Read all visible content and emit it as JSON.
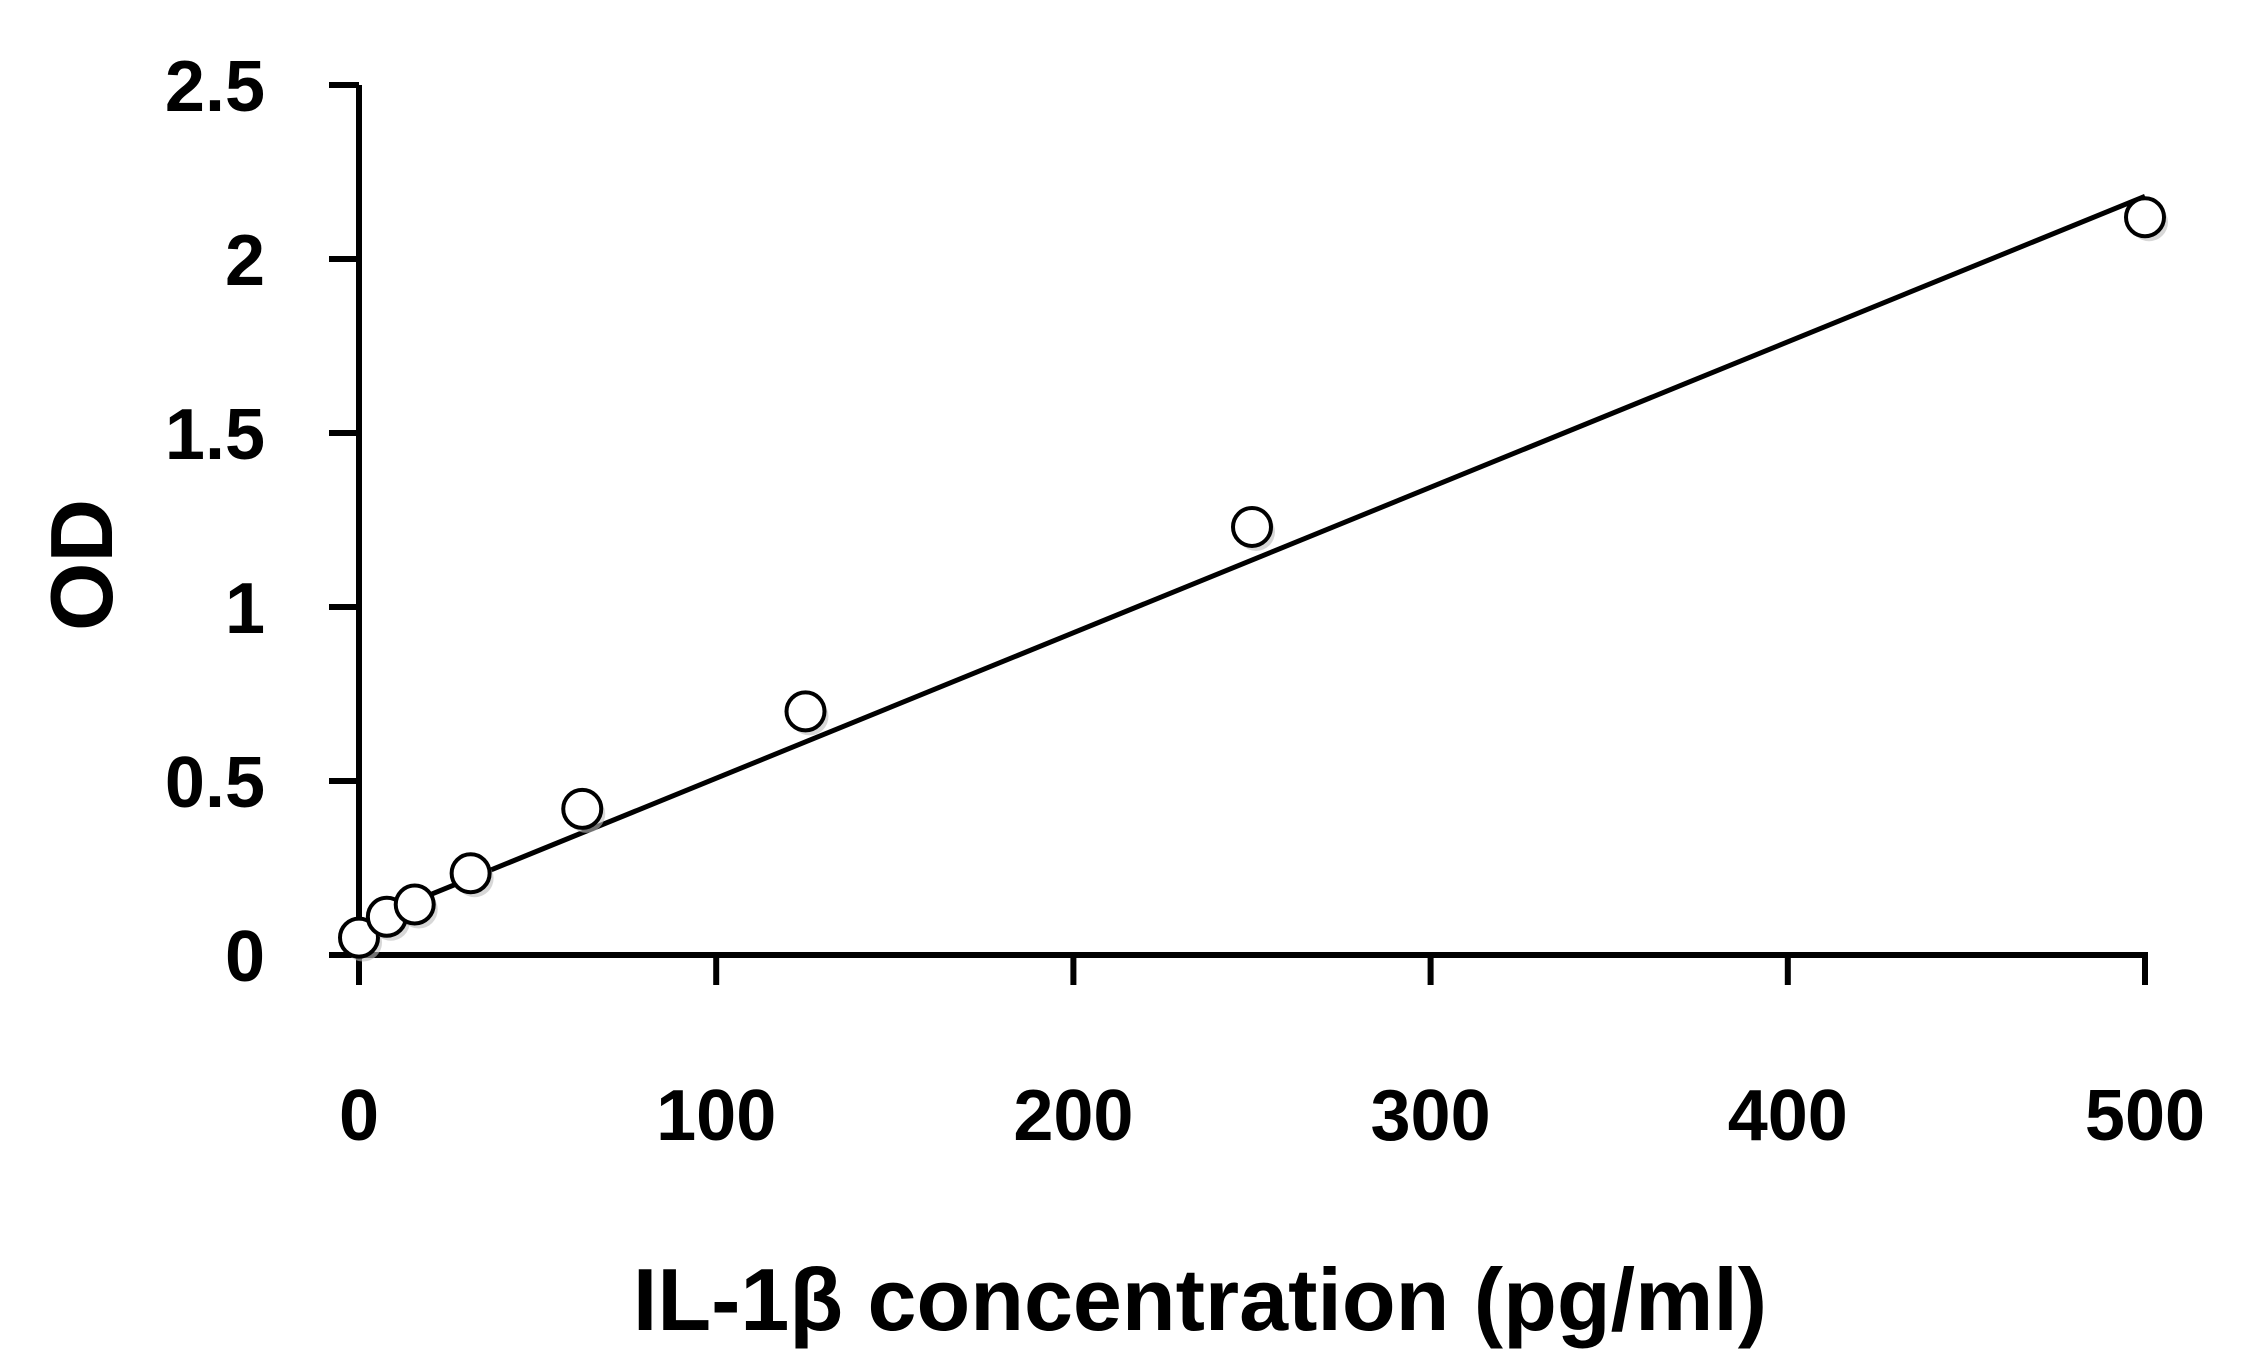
{
  "chart_data": {
    "type": "scatter",
    "title": "",
    "xlabel": "IL-1β  concentration (pg/ml)",
    "ylabel": "OD",
    "xlim": [
      0,
      500
    ],
    "ylim": [
      0,
      2.5
    ],
    "x_ticks": [
      "0",
      "100",
      "200",
      "300",
      "400",
      "500"
    ],
    "y_ticks": [
      "0",
      "0.5",
      "1",
      "1.5",
      "2",
      "2.5"
    ],
    "grid": false,
    "legend": "none",
    "series": [
      {
        "marker": "open-circle",
        "points": [
          {
            "x": 0,
            "y": 0.05
          },
          {
            "x": 7.8,
            "y": 0.11
          },
          {
            "x": 15.6,
            "y": 0.145
          },
          {
            "x": 31.25,
            "y": 0.235
          },
          {
            "x": 62.5,
            "y": 0.42
          },
          {
            "x": 125,
            "y": 0.7
          },
          {
            "x": 250,
            "y": 1.23
          },
          {
            "x": 500,
            "y": 2.12
          }
        ]
      }
    ],
    "trendline": {
      "type": "linear",
      "x": [
        0,
        500
      ],
      "y": [
        0.09,
        2.18
      ]
    },
    "colors": {
      "axis": "#000000",
      "marker_stroke": "#000000",
      "marker_fill": "#ffffff",
      "line": "#000000"
    }
  }
}
